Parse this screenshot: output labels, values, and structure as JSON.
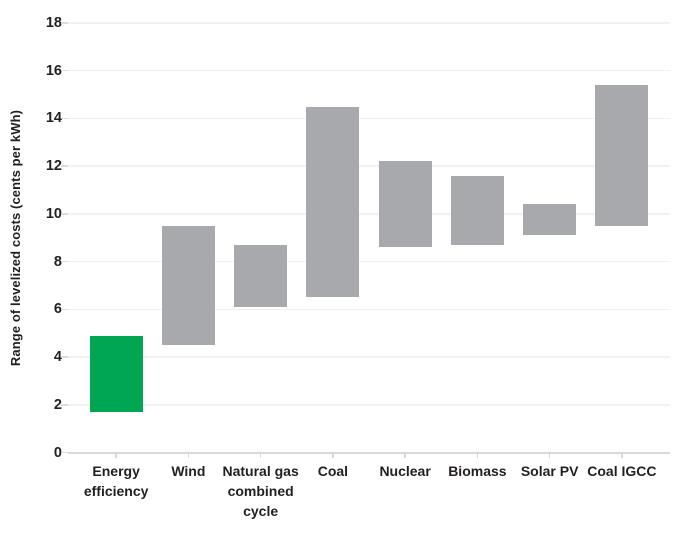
{
  "chart_data": {
    "type": "bar",
    "variant": "floating-range-columns",
    "title": "",
    "xlabel": "",
    "ylabel": "Range of levelized costs (cents per kWh)",
    "ylim": [
      0,
      18
    ],
    "yticks": [
      0,
      2,
      4,
      6,
      8,
      10,
      12,
      14,
      16,
      18
    ],
    "grid": "horizontal-gridlines",
    "legend": "none",
    "categories": [
      "Energy efficiency",
      "Wind",
      "Natural gas combined cycle",
      "Coal",
      "Nuclear",
      "Biomass",
      "Solar PV",
      "Coal IGCC"
    ],
    "bars": [
      {
        "label": "Energy efficiency",
        "label_lines": [
          "Energy",
          "efficiency"
        ],
        "low": 1.7,
        "high": 4.9,
        "color": "#00A651"
      },
      {
        "label": "Wind",
        "label_lines": [
          "Wind"
        ],
        "low": 4.5,
        "high": 9.5,
        "color": "#A7A9AC"
      },
      {
        "label": "Natural gas combined cycle",
        "label_lines": [
          "Natural gas",
          "combined",
          "cycle"
        ],
        "low": 6.1,
        "high": 8.7,
        "color": "#A7A9AC"
      },
      {
        "label": "Coal",
        "label_lines": [
          "Coal"
        ],
        "low": 6.5,
        "high": 14.5,
        "color": "#A7A9AC"
      },
      {
        "label": "Nuclear",
        "label_lines": [
          "Nuclear"
        ],
        "low": 8.6,
        "high": 12.2,
        "color": "#A7A9AC"
      },
      {
        "label": "Biomass",
        "label_lines": [
          "Biomass"
        ],
        "low": 8.7,
        "high": 11.6,
        "color": "#A7A9AC"
      },
      {
        "label": "Solar PV",
        "label_lines": [
          "Solar PV"
        ],
        "low": 9.1,
        "high": 10.4,
        "color": "#A7A9AC"
      },
      {
        "label": "Coal IGCC",
        "label_lines": [
          "Coal IGCC"
        ],
        "low": 9.5,
        "high": 15.4,
        "color": "#A7A9AC"
      }
    ],
    "colors": {
      "highlight_green": "#00A651",
      "bar_gray": "#A7A9AC",
      "gridline": "#F1F1F2",
      "axis_line": "#D9D9DB",
      "text": "#231F20",
      "background": "#FFFFFF"
    }
  }
}
